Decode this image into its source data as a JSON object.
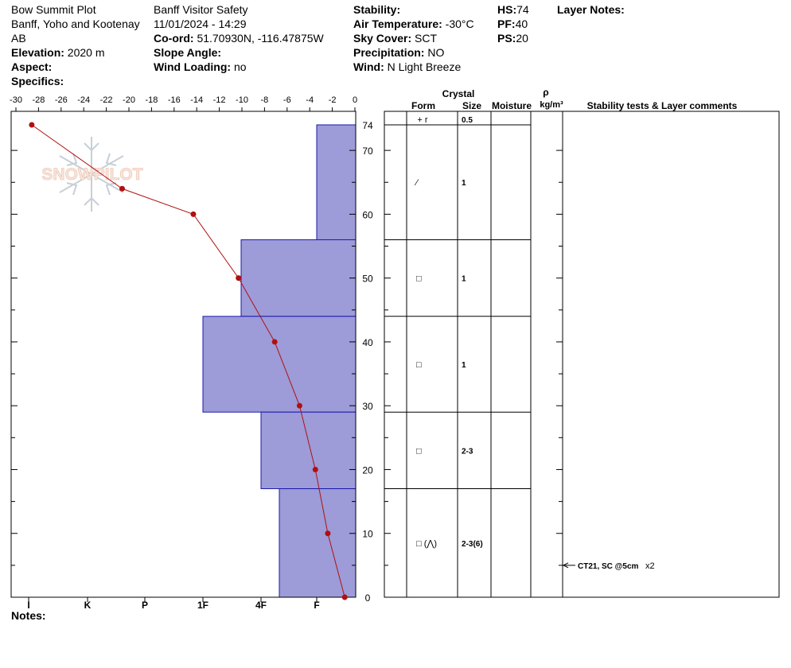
{
  "header": {
    "site": "Bow Summit Plot",
    "region": "Banff, Yoho and Kootenay",
    "province": "AB",
    "elevation_label": "Elevation:",
    "elevation": "2020 m",
    "aspect_label": "Aspect:",
    "aspect": "",
    "specifics_label": "Specifics:",
    "organization": "Banff  Visitor Safety",
    "datetime": "11/01/2024 - 14:29",
    "coord_label": "Co-ord:",
    "coord": "51.70930N, -116.47875W",
    "slope_label": "Slope Angle:",
    "slope": "",
    "wind_loading_label": "Wind Loading:",
    "wind_loading": "no",
    "stability_label": "Stability:",
    "stability": "",
    "air_temp_label": "Air Temperature:",
    "air_temp": "-30°C",
    "sky_label": "Sky Cover:",
    "sky": "SCT",
    "precip_label": "Precipitation:",
    "precip": "NO",
    "wind_label": "Wind:",
    "wind": " N Light Breeze",
    "hs_label": "HS:",
    "hs": "74",
    "pf_label": "PF:",
    "pf": "40",
    "ps_label": "PS:",
    "ps": "20",
    "layer_notes_label": "Layer Notes:",
    "notes_label": "Notes:"
  },
  "logo_text": "SNOWPILOT",
  "table": {
    "crystal_label": "Crystal",
    "rho_label": "ρ",
    "form_label": "Form",
    "size_label": "Size",
    "moisture_label": "Moisture",
    "density_label": "kg/m³",
    "comments_label": "Stability tests & Layer comments",
    "top_row": {
      "form": "+ r",
      "size": "0.5"
    },
    "layers": [
      {
        "top": 74,
        "bottom": 56,
        "form": "⁄",
        "size": "1"
      },
      {
        "top": 56,
        "bottom": 44,
        "form": "□",
        "size": "1"
      },
      {
        "top": 44,
        "bottom": 29,
        "form": "□",
        "size": "1"
      },
      {
        "top": 29,
        "bottom": 17,
        "form": "□",
        "size": "2-3"
      },
      {
        "top": 17,
        "bottom": 0,
        "form": "□ (⋀)",
        "size": "2-3(6)"
      }
    ],
    "stability_test": {
      "height": 5,
      "text": "CT21, SC @5cm",
      "multiplier": "x2"
    }
  },
  "chart_data": {
    "type": "line",
    "temperature_axis": {
      "ticks": [
        -30,
        -28,
        -26,
        -24,
        -22,
        -20,
        -18,
        -16,
        -14,
        -12,
        -10,
        -8,
        -6,
        -4,
        -2,
        0
      ],
      "range": [
        -30,
        0
      ]
    },
    "height_axis": {
      "ticks": [
        0,
        10,
        20,
        30,
        40,
        50,
        60,
        70,
        74
      ],
      "range": [
        0,
        74
      ]
    },
    "hardness_labels": [
      "I",
      "K",
      "P",
      "1F",
      "4F",
      "F"
    ],
    "temperature_profile": [
      {
        "height": 74,
        "temp": -28.6
      },
      {
        "height": 64,
        "temp": -20.6
      },
      {
        "height": 60,
        "temp": -14.3
      },
      {
        "height": 50,
        "temp": -10.3
      },
      {
        "height": 40,
        "temp": -7.1
      },
      {
        "height": 30,
        "temp": -4.9
      },
      {
        "height": 20,
        "temp": -3.5
      },
      {
        "height": 10,
        "temp": -2.4
      },
      {
        "height": 0,
        "temp": -0.9
      }
    ],
    "hardness_profile": [
      {
        "top": 74,
        "bottom": 56,
        "hardness": "F"
      },
      {
        "top": 56,
        "bottom": 44,
        "hardness": "4F-"
      },
      {
        "top": 44,
        "bottom": 29,
        "hardness": "1F"
      },
      {
        "top": 29,
        "bottom": 17,
        "hardness": "4F"
      },
      {
        "top": 17,
        "bottom": 0,
        "hardness": "4F+"
      }
    ],
    "colors": {
      "hardness_fill": "#9d9bd8",
      "hardness_stroke": "#1a1aaa",
      "temp_line": "#b01010"
    }
  }
}
